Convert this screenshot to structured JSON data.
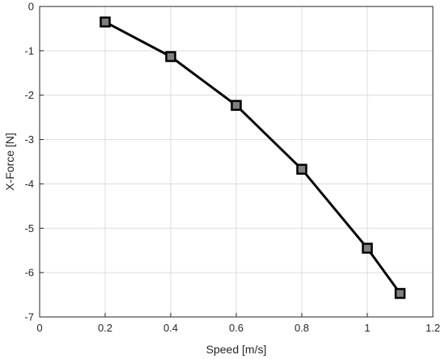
{
  "chart_data": {
    "type": "line",
    "xlabel": "Speed [m/s]",
    "ylabel": "X-Force [N]",
    "xlim": [
      0,
      1.2
    ],
    "ylim": [
      -7,
      0
    ],
    "xticks": [
      "0",
      "0.2",
      "0.4",
      "0.6",
      "0.8",
      "1",
      "1.2"
    ],
    "yticks": [
      "0",
      "-1",
      "-2",
      "-3",
      "-4",
      "-5",
      "-6",
      "-7"
    ],
    "grid": true,
    "series": [
      {
        "x": [
          0.2,
          0.4,
          0.6,
          0.8,
          1.0,
          1.1
        ],
        "y": [
          -0.35,
          -1.13,
          -2.23,
          -3.67,
          -5.45,
          -6.47
        ],
        "line_color": "#000000",
        "marker": "square",
        "marker_fill": "#7f7f7f"
      }
    ]
  }
}
